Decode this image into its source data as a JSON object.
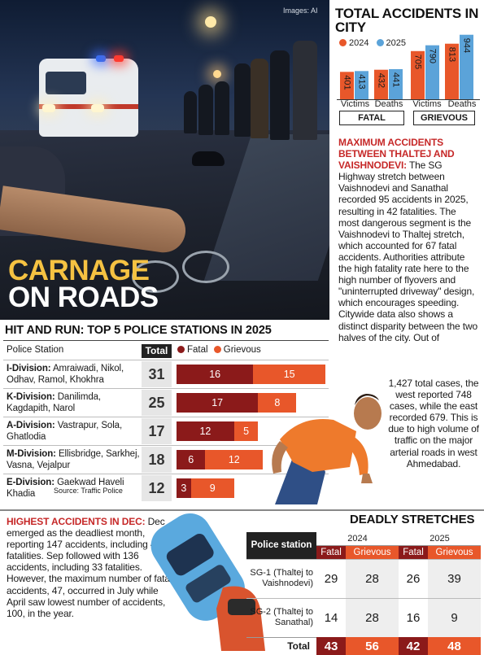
{
  "photo": {
    "credit": "Images: AI",
    "title_line1": "CARNAGE",
    "title_line2": "ON ROADS"
  },
  "total_accidents": {
    "title": "TOTAL ACCIDENTS IN CITY",
    "colors": {
      "2024": "#e8572a",
      "2025": "#5ba3d9"
    },
    "chart_data": {
      "type": "bar",
      "title": "TOTAL ACCIDENTS IN CITY",
      "legend": [
        "2024",
        "2025"
      ],
      "groups": [
        {
          "name": "FATAL",
          "categories": [
            "Victims",
            "Deaths"
          ],
          "values_2024": [
            401,
            432
          ],
          "values_2025": [
            413,
            441
          ]
        },
        {
          "name": "GRIEVOUS",
          "categories": [
            "Victims",
            "Deaths"
          ],
          "values_2024": [
            705,
            813
          ],
          "values_2025": [
            790,
            944
          ]
        }
      ]
    }
  },
  "article": {
    "head": "MAXIMUM ACCIDENTS BETWEEN THALTEJ AND VAISHNODEVI:",
    "body": " The SG Highway stretch between Vaishnodevi and Sanathal recorded 95 accidents in 2025, resulting in 42 fatalities. The most dangerous segment is the Vaishnodevi to Thaltej stretch, which accounted for 67 fatal accidents. Authorities attribute the high fatality rate here to the high number of flyovers and \"uninterrupted driveway\" design, which encourages speeding. Citywide data also shows a distinct disparity between the two halves of the city. Out of",
    "body2": "1,427 total cases, the west reported 748 cases, while the east recorded 679. This is due to high volume of traffic on the major arterial roads in west Ahmedabad."
  },
  "hit_and_run": {
    "title": "HIT AND RUN: TOP 5 POLICE STATIONS IN 2025",
    "col_station": "Police Station",
    "col_total": "Total",
    "legend_fatal": "Fatal",
    "legend_grievous": "Grievous",
    "color_fatal": "#8b1a1a",
    "color_grievous": "#e8572a",
    "source": "Source: Traffic Police",
    "chart_data": {
      "type": "bar",
      "stacked": true,
      "categories": [
        "I-Division",
        "K-Division",
        "A-Division",
        "M-Division",
        "E-Division"
      ],
      "series": [
        {
          "name": "Fatal",
          "values": [
            16,
            17,
            12,
            6,
            3
          ]
        },
        {
          "name": "Grievous",
          "values": [
            15,
            8,
            5,
            12,
            9
          ]
        }
      ],
      "totals": [
        31,
        25,
        17,
        18,
        12
      ]
    },
    "rows": [
      {
        "division": "I-Division:",
        "areas": " Amraiwadi, Nikol, Odhav, Ramol, Khokhra",
        "total": "31",
        "fatal": "16",
        "grievous": "15"
      },
      {
        "division": "K-Division:",
        "areas": " Danilimda, Kagdapith, Narol",
        "total": "25",
        "fatal": "17",
        "grievous": "8"
      },
      {
        "division": "A-Division:",
        "areas": " Vastrapur, Sola, Ghatlodia",
        "total": "17",
        "fatal": "12",
        "grievous": "5"
      },
      {
        "division": "M-Division:",
        "areas": " Ellisbridge, Sarkhej, Vasna, Vejalpur",
        "total": "18",
        "fatal": "6",
        "grievous": "12"
      },
      {
        "division": "E-Division:",
        "areas": " Gaekwad Haveli Khadia",
        "total": "12",
        "fatal": "3",
        "grievous": "9"
      }
    ]
  },
  "december": {
    "head": "HIGHEST ACCIDENTS IN DEC:",
    "body": " Dec emerged as the deadliest month, reporting 147 accidents, including 46 fatalities. Sep followed with 136 accidents, including 33 fatalities. However, the maximum number of fatal accidents, 47, occurred in July while April saw lowest number of accidents, 100, in the year."
  },
  "deadly_stretches": {
    "title": "DEADLY STRETCHES",
    "col_station": "Police station",
    "year1": "2024",
    "year2": "2025",
    "fatal": "Fatal",
    "grievous": "Grievous",
    "rows": [
      {
        "name": "SG-1 (Thaltej to Vaishnodevi)",
        "f2024": "29",
        "g2024": "28",
        "f2025": "26",
        "g2025": "39"
      },
      {
        "name": "SG-2 (Thaltej to Sanathal)",
        "f2024": "14",
        "g2024": "28",
        "f2025": "16",
        "g2025": "9"
      }
    ],
    "total_label": "Total",
    "totals": {
      "f2024": "43",
      "g2024": "56",
      "f2025": "42",
      "g2025": "48"
    }
  }
}
